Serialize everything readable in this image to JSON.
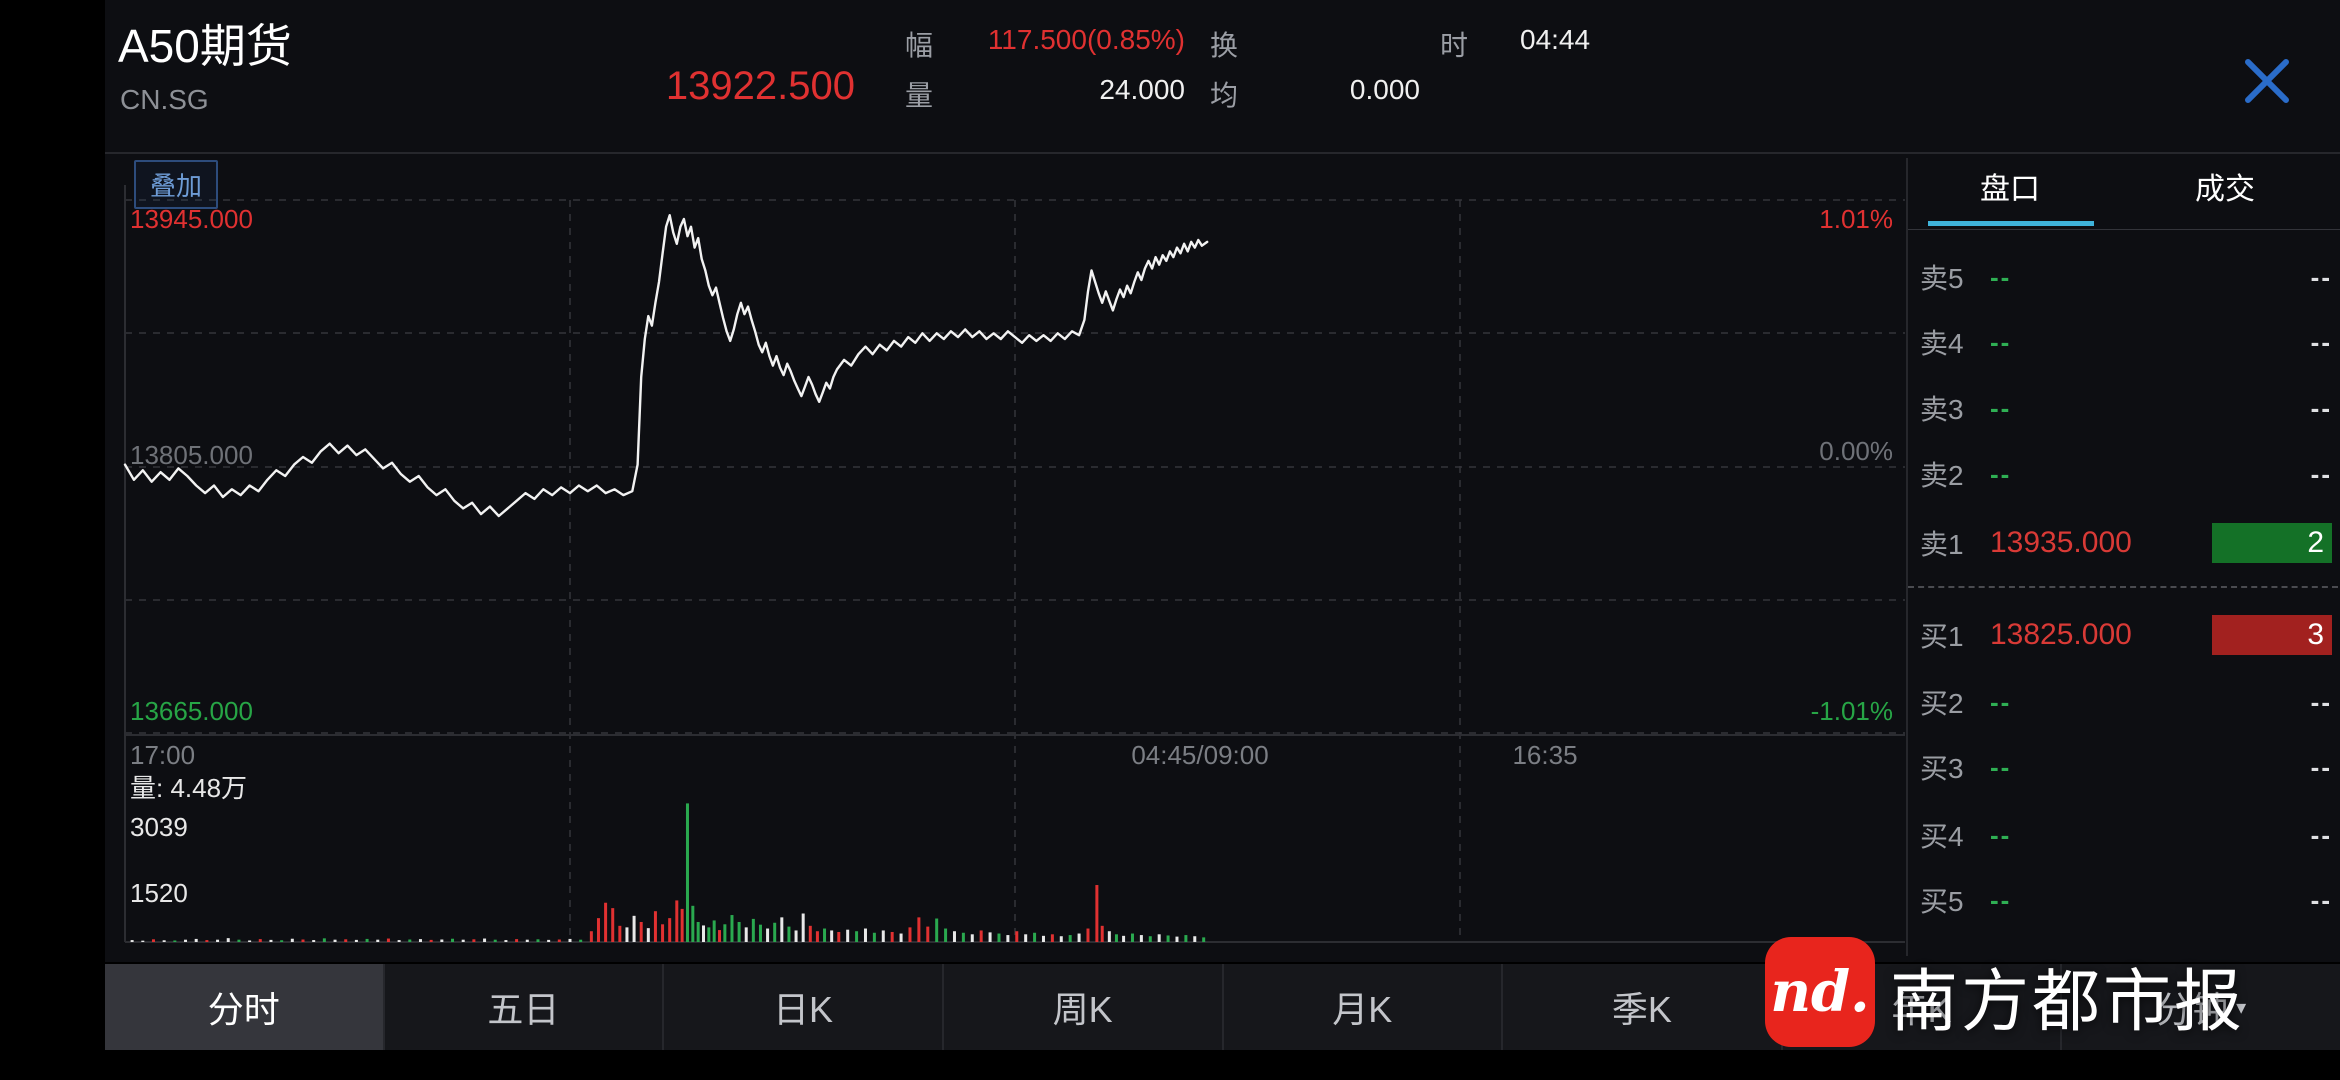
{
  "header": {
    "title": "A50期货",
    "exchange": "CN.SG",
    "price": "13922.500",
    "stats": [
      {
        "label": "幅",
        "value": "117.500(0.85%)"
      },
      {
        "label": "量",
        "value": "24.000"
      },
      {
        "label": "换",
        "value": ""
      },
      {
        "label": "均",
        "value": "0.000"
      },
      {
        "label": "时",
        "value": "04:44"
      }
    ]
  },
  "chart": {
    "overlay_button": "叠加",
    "y_labels": {
      "high": "13945.000",
      "mid": "13805.000",
      "low": "13665.000"
    },
    "pct_labels": {
      "high": "1.01%",
      "mid": "0.00%",
      "low": "-1.01%"
    },
    "x_labels": [
      "17:00",
      "04:45/09:00",
      "16:35"
    ],
    "volume_title": "量: 4.48万",
    "vol_ticks": [
      "3039",
      "1520"
    ]
  },
  "chart_data": {
    "type": "line",
    "title": "A50期货 分时",
    "y_axis": {
      "max": 13945.0,
      "mid": 13805.0,
      "min": 13665.0
    },
    "pct_axis": [
      1.01,
      0.0,
      -1.01
    ],
    "x_axis_labels": [
      "17:00",
      "04:45/09:00",
      "16:35"
    ],
    "last_price": 13922.5,
    "volume_axis_ticks": [
      3039,
      1520
    ],
    "grid": true,
    "price_points": [
      [
        0.0,
        13806
      ],
      [
        0.005,
        13798
      ],
      [
        0.01,
        13803
      ],
      [
        0.015,
        13797
      ],
      [
        0.02,
        13802
      ],
      [
        0.025,
        13798
      ],
      [
        0.03,
        13804
      ],
      [
        0.035,
        13800
      ],
      [
        0.04,
        13795
      ],
      [
        0.045,
        13791
      ],
      [
        0.05,
        13795
      ],
      [
        0.055,
        13789
      ],
      [
        0.06,
        13793
      ],
      [
        0.065,
        13790
      ],
      [
        0.07,
        13795
      ],
      [
        0.075,
        13792
      ],
      [
        0.08,
        13798
      ],
      [
        0.085,
        13803
      ],
      [
        0.09,
        13800
      ],
      [
        0.095,
        13806
      ],
      [
        0.1,
        13810
      ],
      [
        0.105,
        13807
      ],
      [
        0.11,
        13813
      ],
      [
        0.115,
        13817
      ],
      [
        0.12,
        13812
      ],
      [
        0.125,
        13816
      ],
      [
        0.13,
        13811
      ],
      [
        0.135,
        13814
      ],
      [
        0.14,
        13809
      ],
      [
        0.145,
        13804
      ],
      [
        0.15,
        13807
      ],
      [
        0.155,
        13801
      ],
      [
        0.16,
        13797
      ],
      [
        0.165,
        13800
      ],
      [
        0.17,
        13794
      ],
      [
        0.175,
        13790
      ],
      [
        0.18,
        13793
      ],
      [
        0.185,
        13787
      ],
      [
        0.19,
        13783
      ],
      [
        0.195,
        13786
      ],
      [
        0.2,
        13780
      ],
      [
        0.205,
        13784
      ],
      [
        0.21,
        13779
      ],
      [
        0.215,
        13783
      ],
      [
        0.22,
        13787
      ],
      [
        0.225,
        13791
      ],
      [
        0.23,
        13788
      ],
      [
        0.235,
        13793
      ],
      [
        0.24,
        13790
      ],
      [
        0.245,
        13794
      ],
      [
        0.25,
        13791
      ],
      [
        0.255,
        13795
      ],
      [
        0.26,
        13792
      ],
      [
        0.265,
        13795
      ],
      [
        0.27,
        13791
      ],
      [
        0.275,
        13793
      ],
      [
        0.28,
        13790
      ],
      [
        0.285,
        13792
      ],
      [
        0.288,
        13806
      ],
      [
        0.29,
        13852
      ],
      [
        0.292,
        13872
      ],
      [
        0.294,
        13884
      ],
      [
        0.296,
        13879
      ],
      [
        0.298,
        13891
      ],
      [
        0.3,
        13902
      ],
      [
        0.302,
        13917
      ],
      [
        0.304,
        13931
      ],
      [
        0.306,
        13937
      ],
      [
        0.308,
        13928
      ],
      [
        0.31,
        13922
      ],
      [
        0.312,
        13931
      ],
      [
        0.314,
        13935
      ],
      [
        0.316,
        13926
      ],
      [
        0.318,
        13931
      ],
      [
        0.32,
        13920
      ],
      [
        0.322,
        13925
      ],
      [
        0.324,
        13914
      ],
      [
        0.326,
        13908
      ],
      [
        0.328,
        13900
      ],
      [
        0.33,
        13895
      ],
      [
        0.332,
        13899
      ],
      [
        0.334,
        13891
      ],
      [
        0.336,
        13883
      ],
      [
        0.338,
        13876
      ],
      [
        0.34,
        13871
      ],
      [
        0.342,
        13877
      ],
      [
        0.344,
        13885
      ],
      [
        0.346,
        13891
      ],
      [
        0.348,
        13885
      ],
      [
        0.35,
        13889
      ],
      [
        0.352,
        13882
      ],
      [
        0.354,
        13876
      ],
      [
        0.356,
        13869
      ],
      [
        0.358,
        13865
      ],
      [
        0.36,
        13870
      ],
      [
        0.362,
        13863
      ],
      [
        0.364,
        13858
      ],
      [
        0.366,
        13863
      ],
      [
        0.368,
        13857
      ],
      [
        0.37,
        13853
      ],
      [
        0.372,
        13859
      ],
      [
        0.374,
        13855
      ],
      [
        0.376,
        13850
      ],
      [
        0.378,
        13846
      ],
      [
        0.38,
        13842
      ],
      [
        0.382,
        13847
      ],
      [
        0.384,
        13852
      ],
      [
        0.386,
        13848
      ],
      [
        0.388,
        13843
      ],
      [
        0.39,
        13839
      ],
      [
        0.392,
        13844
      ],
      [
        0.394,
        13849
      ],
      [
        0.396,
        13846
      ],
      [
        0.398,
        13852
      ],
      [
        0.4,
        13856
      ],
      [
        0.404,
        13861
      ],
      [
        0.408,
        13858
      ],
      [
        0.412,
        13864
      ],
      [
        0.416,
        13868
      ],
      [
        0.42,
        13864
      ],
      [
        0.424,
        13869
      ],
      [
        0.428,
        13866
      ],
      [
        0.432,
        13871
      ],
      [
        0.436,
        13868
      ],
      [
        0.44,
        13873
      ],
      [
        0.444,
        13870
      ],
      [
        0.448,
        13875
      ],
      [
        0.452,
        13871
      ],
      [
        0.456,
        13875
      ],
      [
        0.46,
        13872
      ],
      [
        0.464,
        13876
      ],
      [
        0.468,
        13873
      ],
      [
        0.472,
        13877
      ],
      [
        0.476,
        13873
      ],
      [
        0.48,
        13876
      ],
      [
        0.484,
        13872
      ],
      [
        0.488,
        13875
      ],
      [
        0.492,
        13872
      ],
      [
        0.496,
        13876
      ],
      [
        0.5,
        13873
      ],
      [
        0.504,
        13870
      ],
      [
        0.508,
        13874
      ],
      [
        0.512,
        13871
      ],
      [
        0.516,
        13874
      ],
      [
        0.52,
        13871
      ],
      [
        0.524,
        13875
      ],
      [
        0.528,
        13872
      ],
      [
        0.532,
        13876
      ],
      [
        0.536,
        13874
      ],
      [
        0.539,
        13882
      ],
      [
        0.541,
        13897
      ],
      [
        0.543,
        13908
      ],
      [
        0.545,
        13902
      ],
      [
        0.547,
        13896
      ],
      [
        0.549,
        13891
      ],
      [
        0.551,
        13897
      ],
      [
        0.553,
        13892
      ],
      [
        0.555,
        13887
      ],
      [
        0.557,
        13893
      ],
      [
        0.559,
        13898
      ],
      [
        0.561,
        13894
      ],
      [
        0.563,
        13900
      ],
      [
        0.565,
        13896
      ],
      [
        0.567,
        13902
      ],
      [
        0.569,
        13907
      ],
      [
        0.571,
        13903
      ],
      [
        0.573,
        13909
      ],
      [
        0.575,
        13913
      ],
      [
        0.577,
        13909
      ],
      [
        0.579,
        13915
      ],
      [
        0.581,
        13911
      ],
      [
        0.583,
        13916
      ],
      [
        0.585,
        13913
      ],
      [
        0.587,
        13918
      ],
      [
        0.589,
        13915
      ],
      [
        0.591,
        13920
      ],
      [
        0.593,
        13917
      ],
      [
        0.595,
        13922
      ],
      [
        0.597,
        13918
      ],
      [
        0.599,
        13923
      ],
      [
        0.601,
        13920
      ],
      [
        0.603,
        13924
      ],
      [
        0.605,
        13921
      ],
      [
        0.608,
        13923
      ]
    ],
    "volume_bars": [
      [
        0.004,
        50,
        "w"
      ],
      [
        0.01,
        35,
        "w"
      ],
      [
        0.016,
        70,
        "r"
      ],
      [
        0.022,
        45,
        "w"
      ],
      [
        0.028,
        40,
        "g"
      ],
      [
        0.034,
        60,
        "w"
      ],
      [
        0.04,
        80,
        "w"
      ],
      [
        0.046,
        50,
        "r"
      ],
      [
        0.052,
        60,
        "w"
      ],
      [
        0.058,
        100,
        "w"
      ],
      [
        0.064,
        60,
        "g"
      ],
      [
        0.07,
        40,
        "w"
      ],
      [
        0.076,
        75,
        "r"
      ],
      [
        0.082,
        55,
        "w"
      ],
      [
        0.088,
        45,
        "g"
      ],
      [
        0.094,
        85,
        "w"
      ],
      [
        0.1,
        65,
        "r"
      ],
      [
        0.106,
        50,
        "w"
      ],
      [
        0.112,
        95,
        "g"
      ],
      [
        0.118,
        60,
        "w"
      ],
      [
        0.124,
        70,
        "r"
      ],
      [
        0.13,
        55,
        "w"
      ],
      [
        0.136,
        80,
        "g"
      ],
      [
        0.142,
        60,
        "w"
      ],
      [
        0.148,
        90,
        "r"
      ],
      [
        0.154,
        50,
        "w"
      ],
      [
        0.16,
        65,
        "g"
      ],
      [
        0.166,
        75,
        "w"
      ],
      [
        0.172,
        55,
        "r"
      ],
      [
        0.178,
        65,
        "w"
      ],
      [
        0.184,
        85,
        "g"
      ],
      [
        0.19,
        60,
        "w"
      ],
      [
        0.196,
        70,
        "r"
      ],
      [
        0.202,
        90,
        "w"
      ],
      [
        0.208,
        60,
        "g"
      ],
      [
        0.214,
        50,
        "w"
      ],
      [
        0.22,
        75,
        "r"
      ],
      [
        0.226,
        60,
        "w"
      ],
      [
        0.232,
        70,
        "g"
      ],
      [
        0.238,
        55,
        "w"
      ],
      [
        0.244,
        65,
        "r"
      ],
      [
        0.25,
        80,
        "w"
      ],
      [
        0.256,
        60,
        "g"
      ],
      [
        0.262,
        280,
        "r"
      ],
      [
        0.266,
        620,
        "r"
      ],
      [
        0.27,
        1020,
        "r"
      ],
      [
        0.274,
        880,
        "r"
      ],
      [
        0.278,
        420,
        "r"
      ],
      [
        0.282,
        380,
        "w"
      ],
      [
        0.286,
        680,
        "w"
      ],
      [
        0.29,
        520,
        "r"
      ],
      [
        0.294,
        360,
        "w"
      ],
      [
        0.298,
        800,
        "r"
      ],
      [
        0.302,
        460,
        "r"
      ],
      [
        0.306,
        620,
        "r"
      ],
      [
        0.31,
        1080,
        "r"
      ],
      [
        0.313,
        860,
        "r"
      ],
      [
        0.316,
        3600,
        "g"
      ],
      [
        0.319,
        940,
        "g"
      ],
      [
        0.322,
        520,
        "g"
      ],
      [
        0.325,
        430,
        "w"
      ],
      [
        0.328,
        380,
        "g"
      ],
      [
        0.331,
        560,
        "g"
      ],
      [
        0.334,
        310,
        "r"
      ],
      [
        0.337,
        460,
        "g"
      ],
      [
        0.341,
        700,
        "g"
      ],
      [
        0.345,
        520,
        "g"
      ],
      [
        0.349,
        380,
        "w"
      ],
      [
        0.353,
        600,
        "g"
      ],
      [
        0.357,
        450,
        "g"
      ],
      [
        0.361,
        350,
        "w"
      ],
      [
        0.365,
        500,
        "g"
      ],
      [
        0.369,
        640,
        "w"
      ],
      [
        0.373,
        400,
        "g"
      ],
      [
        0.377,
        300,
        "w"
      ],
      [
        0.381,
        740,
        "w"
      ],
      [
        0.385,
        420,
        "r"
      ],
      [
        0.389,
        280,
        "r"
      ],
      [
        0.393,
        350,
        "g"
      ],
      [
        0.397,
        300,
        "w"
      ],
      [
        0.401,
        260,
        "r"
      ],
      [
        0.406,
        320,
        "w"
      ],
      [
        0.411,
        280,
        "g"
      ],
      [
        0.416,
        350,
        "w"
      ],
      [
        0.421,
        240,
        "g"
      ],
      [
        0.426,
        300,
        "w"
      ],
      [
        0.431,
        260,
        "r"
      ],
      [
        0.436,
        220,
        "w"
      ],
      [
        0.441,
        380,
        "r"
      ],
      [
        0.446,
        640,
        "r"
      ],
      [
        0.451,
        400,
        "r"
      ],
      [
        0.456,
        610,
        "g"
      ],
      [
        0.461,
        350,
        "g"
      ],
      [
        0.466,
        280,
        "w"
      ],
      [
        0.471,
        240,
        "g"
      ],
      [
        0.476,
        200,
        "w"
      ],
      [
        0.481,
        300,
        "r"
      ],
      [
        0.486,
        250,
        "w"
      ],
      [
        0.491,
        220,
        "g"
      ],
      [
        0.496,
        180,
        "w"
      ],
      [
        0.501,
        280,
        "r"
      ],
      [
        0.506,
        200,
        "w"
      ],
      [
        0.511,
        240,
        "g"
      ],
      [
        0.516,
        160,
        "w"
      ],
      [
        0.521,
        200,
        "r"
      ],
      [
        0.526,
        150,
        "w"
      ],
      [
        0.531,
        180,
        "g"
      ],
      [
        0.536,
        220,
        "w"
      ],
      [
        0.541,
        350,
        "r"
      ],
      [
        0.546,
        1480,
        "r"
      ],
      [
        0.549,
        420,
        "r"
      ],
      [
        0.553,
        280,
        "w"
      ],
      [
        0.557,
        200,
        "g"
      ],
      [
        0.561,
        160,
        "w"
      ],
      [
        0.566,
        220,
        "g"
      ],
      [
        0.571,
        180,
        "w"
      ],
      [
        0.576,
        150,
        "g"
      ],
      [
        0.581,
        200,
        "w"
      ],
      [
        0.586,
        170,
        "g"
      ],
      [
        0.591,
        140,
        "w"
      ],
      [
        0.596,
        180,
        "g"
      ],
      [
        0.601,
        150,
        "w"
      ],
      [
        0.606,
        120,
        "g"
      ]
    ]
  },
  "order_panel": {
    "tabs": [
      "盘口",
      "成交"
    ],
    "asks": [
      {
        "label": "卖5",
        "price": "--",
        "qty": "--"
      },
      {
        "label": "卖4",
        "price": "--",
        "qty": "--"
      },
      {
        "label": "卖3",
        "price": "--",
        "qty": "--"
      },
      {
        "label": "卖2",
        "price": "--",
        "qty": "--"
      },
      {
        "label": "卖1",
        "price": "13935.000",
        "qty": "2",
        "highlight": "green"
      }
    ],
    "bids": [
      {
        "label": "买1",
        "price": "13825.000",
        "qty": "3",
        "highlight": "red"
      },
      {
        "label": "买2",
        "price": "--",
        "qty": "--"
      },
      {
        "label": "买3",
        "price": "--",
        "qty": "--"
      },
      {
        "label": "买4",
        "price": "--",
        "qty": "--"
      },
      {
        "label": "买5",
        "price": "--",
        "qty": "--"
      }
    ]
  },
  "bottom_tabs": {
    "items": [
      "分时",
      "五日",
      "日K",
      "周K",
      "月K",
      "季K",
      "年K",
      "分钟"
    ],
    "selected_index": 0
  },
  "watermark": {
    "logo": "nd.",
    "text": "南方都市报"
  },
  "colors": {
    "up_red": "#e03131",
    "down_green": "#27a546",
    "line_white": "#f2f2f2",
    "tab_underline_cyan": "#3fb3da",
    "close_blue": "#2a6cc9",
    "ask1_box_green": "#147127",
    "bid1_box_red": "#a2211f",
    "watermark_red": "#e8251d"
  }
}
